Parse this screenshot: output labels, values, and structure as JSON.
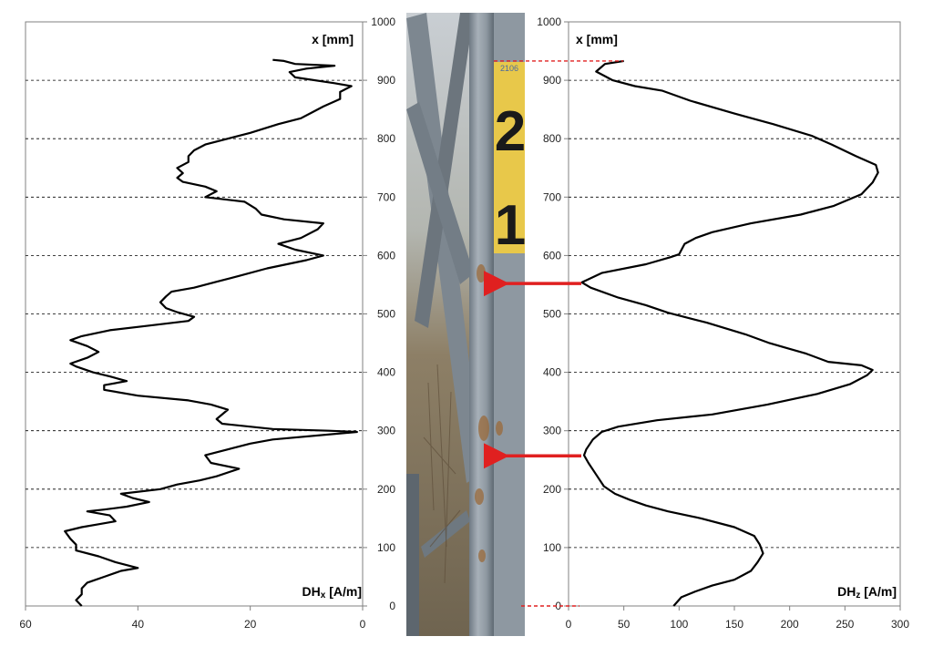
{
  "chart_data": [
    {
      "type": "line",
      "orientation": "vertical",
      "x_axis": {
        "label_main": "DH",
        "label_sub": "x",
        "label_unit": " [A/m]",
        "range": [
          60,
          0
        ],
        "reversed": true,
        "ticks": [
          60,
          40,
          20,
          0
        ]
      },
      "y_axis": {
        "label": "x [mm]",
        "range": [
          0,
          1000
        ],
        "ticks": [
          0,
          100,
          200,
          300,
          400,
          500,
          600,
          700,
          800,
          900,
          1000
        ],
        "tick_side": "right"
      },
      "grid": "horizontal-dashed",
      "series": [
        {
          "points": [
            [
              50,
              0
            ],
            [
              51,
              10
            ],
            [
              50,
              20
            ],
            [
              50,
              30
            ],
            [
              49,
              40
            ],
            [
              46,
              50
            ],
            [
              43,
              60
            ],
            [
              40,
              65
            ],
            [
              44,
              75
            ],
            [
              47,
              85
            ],
            [
              51,
              95
            ],
            [
              51,
              105
            ],
            [
              52,
              115
            ],
            [
              53,
              128
            ],
            [
              50,
              135
            ],
            [
              47,
              140
            ],
            [
              44,
              145
            ],
            [
              45,
              155
            ],
            [
              49,
              162
            ],
            [
              46,
              165
            ],
            [
              42,
              170
            ],
            [
              38,
              178
            ],
            [
              41,
              185
            ],
            [
              43,
              192
            ],
            [
              36,
              200
            ],
            [
              33,
              208
            ],
            [
              29,
              215
            ],
            [
              26,
              222
            ],
            [
              22,
              235
            ],
            [
              27,
              245
            ],
            [
              28,
              258
            ],
            [
              24,
              268
            ],
            [
              20,
              278
            ],
            [
              16,
              285
            ],
            [
              1,
              298
            ],
            [
              6,
              300
            ],
            [
              16,
              303
            ],
            [
              25,
              312
            ],
            [
              26,
              320
            ],
            [
              24,
              336
            ],
            [
              27,
              345
            ],
            [
              31,
              352
            ],
            [
              40,
              360
            ],
            [
              46,
              370
            ],
            [
              46,
              378
            ],
            [
              42,
              385
            ],
            [
              45,
              393
            ],
            [
              48,
              400
            ],
            [
              51,
              410
            ],
            [
              52,
              415
            ],
            [
              49,
              425
            ],
            [
              47,
              435
            ],
            [
              49,
              445
            ],
            [
              52,
              455
            ],
            [
              50,
              462
            ],
            [
              45,
              472
            ],
            [
              38,
              480
            ],
            [
              31,
              488
            ],
            [
              30,
              495
            ],
            [
              33,
              503
            ],
            [
              35,
              510
            ],
            [
              36,
              520
            ],
            [
              35,
              530
            ],
            [
              34,
              538
            ],
            [
              30,
              545
            ],
            [
              26,
              555
            ],
            [
              22,
              565
            ],
            [
              17,
              578
            ],
            [
              10,
              592
            ],
            [
              7,
              600
            ],
            [
              12,
              610
            ],
            [
              15,
              620
            ],
            [
              11,
              630
            ],
            [
              8,
              645
            ],
            [
              7,
              655
            ],
            [
              14,
              662
            ],
            [
              18,
              670
            ],
            [
              19,
              680
            ],
            [
              21,
              692
            ],
            [
              28,
              700
            ],
            [
              26,
              710
            ],
            [
              28,
              718
            ],
            [
              32,
              726
            ],
            [
              33,
              733
            ],
            [
              32,
              741
            ],
            [
              33,
              750
            ],
            [
              31,
              760
            ],
            [
              31,
              770
            ],
            [
              30,
              780
            ],
            [
              28,
              790
            ],
            [
              24,
              800
            ],
            [
              20,
              810
            ],
            [
              15,
              825
            ],
            [
              11,
              835
            ],
            [
              9,
              845
            ],
            [
              7,
              855
            ],
            [
              4,
              868
            ],
            [
              4,
              880
            ],
            [
              2,
              890
            ],
            [
              5,
              895
            ],
            [
              12,
              905
            ],
            [
              13,
              914
            ],
            [
              10,
              920
            ],
            [
              5,
              925
            ],
            [
              12,
              928
            ],
            [
              14,
              933
            ],
            [
              16,
              935
            ]
          ]
        }
      ]
    },
    {
      "type": "line",
      "orientation": "vertical",
      "x_axis": {
        "label_main": "DH",
        "label_sub": "z",
        "label_unit": " [A/m]",
        "range": [
          0,
          300
        ],
        "ticks": [
          0,
          50,
          100,
          150,
          200,
          250,
          300
        ]
      },
      "y_axis": {
        "label": "x [mm]",
        "range": [
          0,
          1000
        ],
        "ticks": [
          0,
          100,
          200,
          300,
          400,
          500,
          600,
          700,
          800,
          900,
          1000
        ],
        "tick_side": "left"
      },
      "grid": "horizontal-dashed",
      "series": [
        {
          "points": [
            [
              95,
              0
            ],
            [
              102,
              15
            ],
            [
              115,
              25
            ],
            [
              130,
              35
            ],
            [
              150,
              45
            ],
            [
              165,
              60
            ],
            [
              171,
              75
            ],
            [
              176,
              90
            ],
            [
              173,
              105
            ],
            [
              168,
              120
            ],
            [
              150,
              135
            ],
            [
              120,
              150
            ],
            [
              90,
              162
            ],
            [
              70,
              172
            ],
            [
              55,
              182
            ],
            [
              42,
              192
            ],
            [
              32,
              205
            ],
            [
              25,
              225
            ],
            [
              18,
              245
            ],
            [
              14,
              258
            ],
            [
              16,
              268
            ],
            [
              22,
              285
            ],
            [
              30,
              298
            ],
            [
              45,
              307
            ],
            [
              80,
              318
            ],
            [
              130,
              328
            ],
            [
              180,
              345
            ],
            [
              225,
              363
            ],
            [
              255,
              380
            ],
            [
              270,
              395
            ],
            [
              275,
              404
            ],
            [
              265,
              412
            ],
            [
              235,
              418
            ],
            [
              215,
              432
            ],
            [
              182,
              450
            ],
            [
              160,
              465
            ],
            [
              125,
              485
            ],
            [
              90,
              502
            ],
            [
              70,
              515
            ],
            [
              45,
              528
            ],
            [
              20,
              545
            ],
            [
              12,
              554
            ],
            [
              30,
              570
            ],
            [
              70,
              585
            ],
            [
              92,
              597
            ],
            [
              100,
              602
            ],
            [
              105,
              620
            ],
            [
              115,
              630
            ],
            [
              130,
              640
            ],
            [
              165,
              655
            ],
            [
              210,
              670
            ],
            [
              240,
              685
            ],
            [
              265,
              705
            ],
            [
              275,
              725
            ],
            [
              280,
              742
            ],
            [
              278,
              755
            ],
            [
              260,
              770
            ],
            [
              238,
              790
            ],
            [
              220,
              805
            ],
            [
              185,
              825
            ],
            [
              150,
              843
            ],
            [
              110,
              865
            ],
            [
              85,
              882
            ],
            [
              60,
              890
            ],
            [
              40,
              900
            ],
            [
              25,
              915
            ],
            [
              33,
              928
            ],
            [
              50,
              933
            ]
          ]
        }
      ]
    }
  ],
  "photo": {
    "post_numeral_top": "2",
    "post_numeral_bottom": "1",
    "post_small_text": "2106",
    "colors": {
      "steel": "#8e98a1",
      "plate": "#e8c84a",
      "rust": "#9a6a3a",
      "ground": "#8b7a5e"
    }
  },
  "annotations": {
    "arrows_mm": [
      552,
      257
    ],
    "dashed_marks_mm": [
      933,
      0
    ],
    "arrow_color": "#e02020"
  }
}
